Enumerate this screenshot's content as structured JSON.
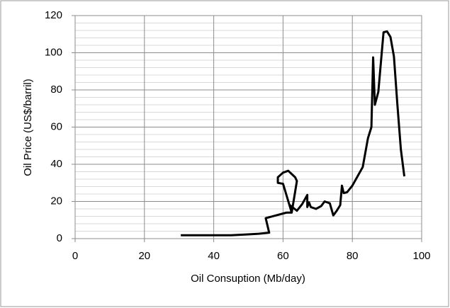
{
  "chart_data": {
    "type": "line",
    "x_label": "Oil Consuption (Mb/day)",
    "y_label": "Oil Price (US$/barril)",
    "x": [
      30.5,
      45,
      50,
      53,
      56,
      55,
      58,
      61,
      62.5,
      60,
      58.5,
      58.5,
      60,
      61.5,
      63.5,
      64,
      62.5,
      62,
      64,
      65.5,
      67,
      67,
      67.5,
      68,
      69.5,
      71,
      72,
      73.5,
      74.5,
      75.5,
      76.5,
      77,
      77.5,
      78.5,
      80,
      83,
      84.5,
      85.5,
      86,
      86.5,
      87.5,
      89,
      90,
      91,
      92,
      93,
      94,
      95
    ],
    "values": [
      1.8,
      1.8,
      2.3,
      2.6,
      3.2,
      11,
      12.5,
      14,
      14,
      29.5,
      30,
      33,
      35.5,
      36.5,
      33,
      31,
      14,
      18,
      15,
      18.5,
      23.5,
      17,
      19.5,
      17,
      16,
      17.5,
      20,
      19,
      12.5,
      15,
      18,
      28.5,
      24.5,
      25,
      28.5,
      38.5,
      54,
      60,
      97.5,
      72,
      79,
      111,
      111.5,
      108.5,
      98,
      72,
      48,
      33.5
    ],
    "color": "#000000",
    "xlim": [
      0,
      100
    ],
    "xticks": [
      0,
      20,
      40,
      60,
      80,
      100
    ],
    "ylim": [
      0,
      120
    ],
    "yticks": [
      0,
      20,
      40,
      60,
      80,
      100,
      120
    ],
    "grid": true,
    "minor_grid_step": 4
  }
}
